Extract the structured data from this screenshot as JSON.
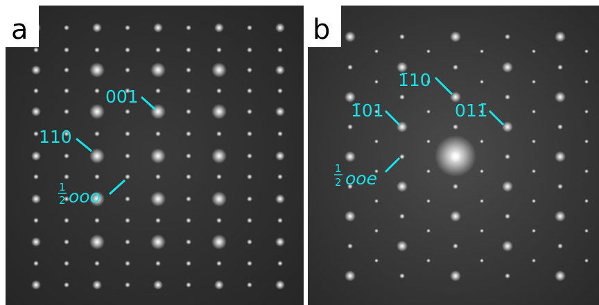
{
  "panels": [
    {
      "letter": "a",
      "labels": [
        {
          "text": "001"
        },
        {
          "text": "110"
        },
        {
          "text": "ooo",
          "fraction": {
            "numerator": "1",
            "denominator": "2"
          }
        }
      ]
    },
    {
      "letter": "b",
      "labels": [
        {
          "text": "1̄10"
        },
        {
          "text": "1̄01"
        },
        {
          "text": "011̄"
        },
        {
          "text": "ooe",
          "fraction": {
            "numerator": "1",
            "denominator": "2"
          }
        }
      ]
    }
  ]
}
